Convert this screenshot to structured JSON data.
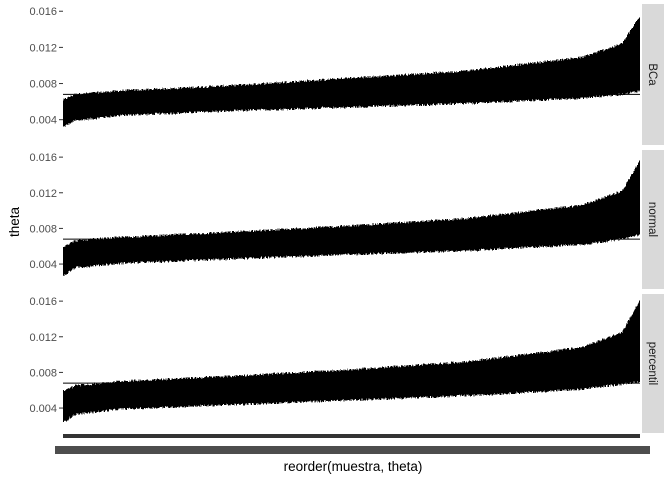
{
  "chart_data": {
    "type": "errorbar",
    "xlabel": "reorder(muestra, theta)",
    "ylabel": "theta",
    "ylim": [
      0.0012,
      0.0168
    ],
    "yticks": [
      0.004,
      0.008,
      0.012,
      0.016
    ],
    "ytick_labels": [
      "0.004",
      "0.008",
      "0.012",
      "0.016"
    ],
    "grid": false,
    "reference_line": 0.0068,
    "n_samples": 1000,
    "colors": {
      "bars": "#000000",
      "strip_background": "#d9d9d9",
      "ticks": "#333333"
    },
    "facets": [
      {
        "label": "BCa",
        "lower_curve": [
          [
            0,
            0.0032
          ],
          [
            0.02,
            0.0039
          ],
          [
            0.1,
            0.0045
          ],
          [
            0.3,
            0.005
          ],
          [
            0.5,
            0.0054
          ],
          [
            0.7,
            0.0058
          ],
          [
            0.9,
            0.0064
          ],
          [
            0.97,
            0.0068
          ],
          [
            1,
            0.0072
          ]
        ],
        "upper_curve": [
          [
            0,
            0.0062
          ],
          [
            0.02,
            0.0068
          ],
          [
            0.1,
            0.0072
          ],
          [
            0.3,
            0.0078
          ],
          [
            0.5,
            0.0086
          ],
          [
            0.7,
            0.0094
          ],
          [
            0.9,
            0.0109
          ],
          [
            0.97,
            0.0124
          ],
          [
            1,
            0.0154
          ]
        ]
      },
      {
        "label": "normal",
        "lower_curve": [
          [
            0,
            0.0027
          ],
          [
            0.02,
            0.0036
          ],
          [
            0.1,
            0.0041
          ],
          [
            0.3,
            0.0046
          ],
          [
            0.5,
            0.0051
          ],
          [
            0.7,
            0.0055
          ],
          [
            0.9,
            0.0062
          ],
          [
            0.97,
            0.0068
          ],
          [
            1,
            0.0073
          ]
        ],
        "upper_curve": [
          [
            0,
            0.006
          ],
          [
            0.02,
            0.0066
          ],
          [
            0.1,
            0.007
          ],
          [
            0.3,
            0.0076
          ],
          [
            0.5,
            0.0083
          ],
          [
            0.7,
            0.0091
          ],
          [
            0.9,
            0.0106
          ],
          [
            0.97,
            0.0122
          ],
          [
            1,
            0.0155
          ]
        ]
      },
      {
        "label": "percentil",
        "lower_curve": [
          [
            0,
            0.0024
          ],
          [
            0.02,
            0.0033
          ],
          [
            0.1,
            0.0039
          ],
          [
            0.3,
            0.0044
          ],
          [
            0.5,
            0.0049
          ],
          [
            0.7,
            0.0054
          ],
          [
            0.9,
            0.0061
          ],
          [
            0.97,
            0.0067
          ],
          [
            1,
            0.007
          ]
        ],
        "upper_curve": [
          [
            0,
            0.0059
          ],
          [
            0.02,
            0.0065
          ],
          [
            0.1,
            0.007
          ],
          [
            0.3,
            0.0076
          ],
          [
            0.5,
            0.0083
          ],
          [
            0.7,
            0.0092
          ],
          [
            0.9,
            0.0108
          ],
          [
            0.97,
            0.0125
          ],
          [
            1,
            0.016
          ]
        ]
      }
    ]
  }
}
